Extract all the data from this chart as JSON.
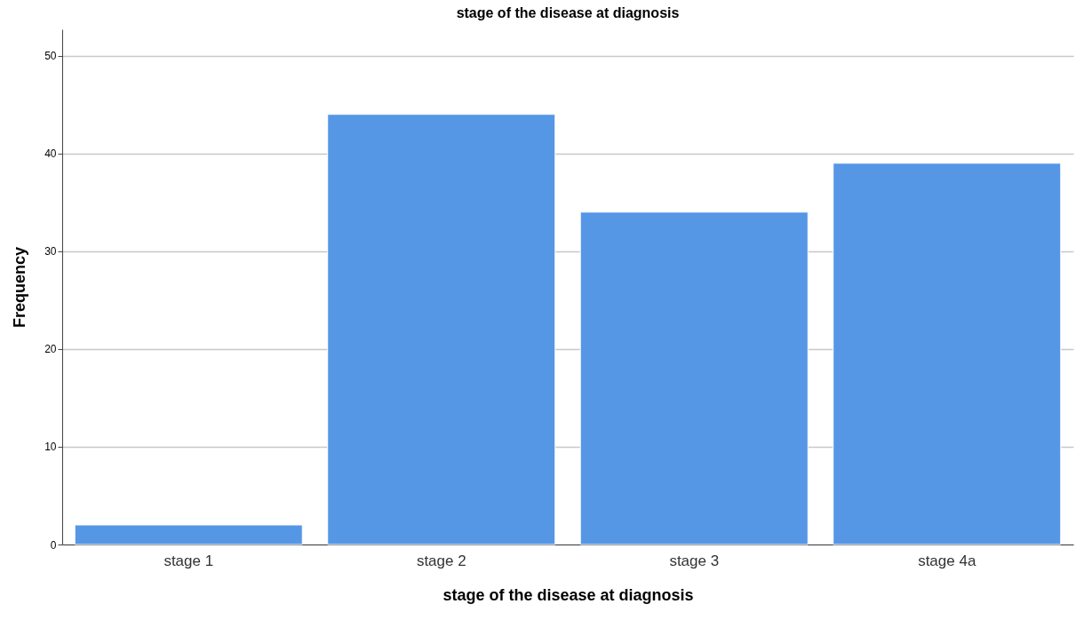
{
  "chart_data": {
    "type": "bar",
    "title": "stage of the disease at diagnosis",
    "xlabel": "stage of the disease at diagnosis",
    "ylabel": "Frequency",
    "categories": [
      "stage 1",
      "stage 2",
      "stage 3",
      "stage 4a"
    ],
    "values": [
      2,
      44,
      34,
      39
    ],
    "color": "#5596e5",
    "ylim": [
      0,
      52.7
    ],
    "yticks": [
      0,
      10,
      20,
      30,
      40,
      50
    ],
    "grid": "y"
  }
}
